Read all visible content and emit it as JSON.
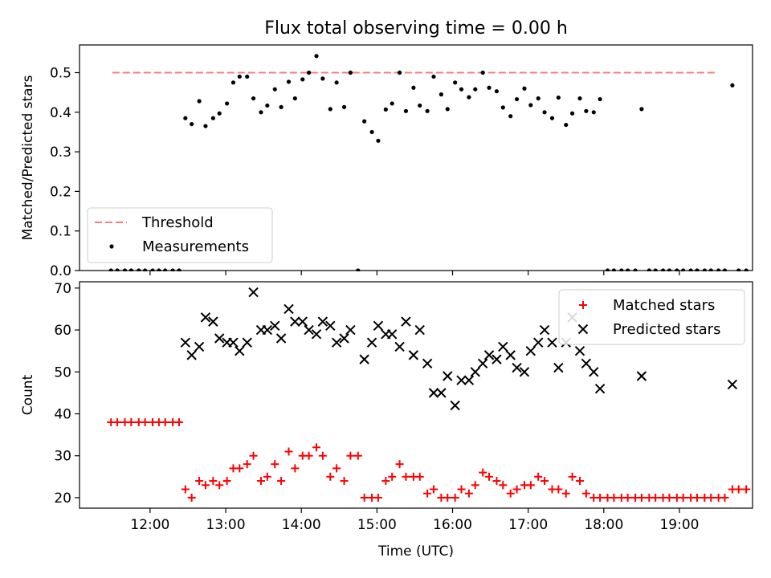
{
  "title": "Flux total observing time = 0.00 h",
  "chart_data": [
    {
      "type": "scatter",
      "panel": "top",
      "ylabel": "Matched/Predicted stars",
      "xlabel": "",
      "xlim": [
        "11:04",
        "19:58"
      ],
      "ylim": [
        0.0,
        0.57
      ],
      "yticks": [
        0.0,
        0.1,
        0.2,
        0.3,
        0.4,
        0.5
      ],
      "ytick_labels": [
        "0.0",
        "0.1",
        "0.2",
        "0.3",
        "0.4",
        "0.5"
      ],
      "legend": {
        "placement": "lower-left",
        "entries": [
          "Threshold",
          "Measurements"
        ]
      },
      "threshold": {
        "name": "Threshold",
        "value": 0.5,
        "x_range": [
          "11:30",
          "19:30"
        ],
        "color": "#f08080"
      },
      "series": [
        {
          "name": "Measurements",
          "color": "#000000",
          "points": [
            [
              "11:29",
              0
            ],
            [
              "11:34",
              0
            ],
            [
              "11:40",
              0
            ],
            [
              "11:45",
              0
            ],
            [
              "11:51",
              0
            ],
            [
              "11:56",
              0
            ],
            [
              "12:02",
              0
            ],
            [
              "12:07",
              0
            ],
            [
              "12:12",
              0
            ],
            [
              "12:18",
              0
            ],
            [
              "12:23",
              0
            ],
            [
              "12:28",
              0.385
            ],
            [
              "12:33",
              0.37
            ],
            [
              "12:39",
              0.428
            ],
            [
              "12:44",
              0.365
            ],
            [
              "12:50",
              0.385
            ],
            [
              "12:55",
              0.397
            ],
            [
              "13:01",
              0.422
            ],
            [
              "13:06",
              0.475
            ],
            [
              "13:11",
              0.49
            ],
            [
              "13:17",
              0.49
            ],
            [
              "13:22",
              0.435
            ],
            [
              "13:28",
              0.4
            ],
            [
              "13:33",
              0.417
            ],
            [
              "13:39",
              0.458
            ],
            [
              "13:44",
              0.413
            ],
            [
              "13:50",
              0.477
            ],
            [
              "13:55",
              0.435
            ],
            [
              "14:01",
              0.483
            ],
            [
              "14:06",
              0.5
            ],
            [
              "14:12",
              0.542
            ],
            [
              "14:17",
              0.485
            ],
            [
              "14:23",
              0.408
            ],
            [
              "14:28",
              0.475
            ],
            [
              "14:34",
              0.413
            ],
            [
              "14:39",
              0.5
            ],
            [
              "14:45",
              0
            ],
            [
              "14:50",
              0.377
            ],
            [
              "14:56",
              0.35
            ],
            [
              "15:01",
              0.328
            ],
            [
              "15:07",
              0.407
            ],
            [
              "15:12",
              0.422
            ],
            [
              "15:18",
              0.5
            ],
            [
              "15:23",
              0.403
            ],
            [
              "15:29",
              0.462
            ],
            [
              "15:34",
              0.417
            ],
            [
              "15:40",
              0.403
            ],
            [
              "15:45",
              0.49
            ],
            [
              "15:51",
              0.445
            ],
            [
              "15:56",
              0.408
            ],
            [
              "16:02",
              0.475
            ],
            [
              "16:07",
              0.458
            ],
            [
              "16:13",
              0.438
            ],
            [
              "16:18",
              0.458
            ],
            [
              "16:24",
              0.5
            ],
            [
              "16:29",
              0.462
            ],
            [
              "16:35",
              0.453
            ],
            [
              "16:40",
              0.412
            ],
            [
              "16:46",
              0.39
            ],
            [
              "16:51",
              0.433
            ],
            [
              "16:57",
              0.46
            ],
            [
              "17:02",
              0.418
            ],
            [
              "17:08",
              0.435
            ],
            [
              "17:13",
              0.4
            ],
            [
              "17:19",
              0.385
            ],
            [
              "17:24",
              0.437
            ],
            [
              "17:30",
              0.368
            ],
            [
              "17:35",
              0.397
            ],
            [
              "17:41",
              0.435
            ],
            [
              "17:46",
              0.403
            ],
            [
              "17:52",
              0.4
            ],
            [
              "17:57",
              0.433
            ],
            [
              "18:03",
              0
            ],
            [
              "18:08",
              0
            ],
            [
              "18:14",
              0
            ],
            [
              "18:19",
              0
            ],
            [
              "18:25",
              0
            ],
            [
              "18:30",
              0.408
            ],
            [
              "18:36",
              0
            ],
            [
              "18:41",
              0
            ],
            [
              "18:47",
              0
            ],
            [
              "18:52",
              0
            ],
            [
              "18:58",
              0
            ],
            [
              "19:03",
              0
            ],
            [
              "19:09",
              0
            ],
            [
              "19:14",
              0
            ],
            [
              "19:20",
              0
            ],
            [
              "19:25",
              0
            ],
            [
              "19:31",
              0
            ],
            [
              "19:36",
              0
            ],
            [
              "19:42",
              0.468
            ],
            [
              "19:47",
              0
            ],
            [
              "19:53",
              0
            ]
          ]
        }
      ]
    },
    {
      "type": "scatter",
      "panel": "bottom",
      "ylabel": "Count",
      "xlabel": "Time (UTC)",
      "xlim": [
        "11:04",
        "19:58"
      ],
      "ylim": [
        17.5,
        71.5
      ],
      "yticks": [
        20,
        30,
        40,
        50,
        60,
        70
      ],
      "ytick_labels": [
        "20",
        "30",
        "40",
        "50",
        "60",
        "70"
      ],
      "xticks": [
        "12:00",
        "13:00",
        "14:00",
        "15:00",
        "16:00",
        "17:00",
        "18:00",
        "19:00"
      ],
      "legend": {
        "placement": "top-right",
        "entries": [
          "Matched stars",
          "Predicted stars"
        ]
      },
      "series": [
        {
          "name": "Matched stars",
          "marker": "plus",
          "color": "#ff0000",
          "points": [
            [
              "11:29",
              38
            ],
            [
              "11:34",
              38
            ],
            [
              "11:40",
              38
            ],
            [
              "11:45",
              38
            ],
            [
              "11:51",
              38
            ],
            [
              "11:56",
              38
            ],
            [
              "12:02",
              38
            ],
            [
              "12:07",
              38
            ],
            [
              "12:12",
              38
            ],
            [
              "12:18",
              38
            ],
            [
              "12:23",
              38
            ],
            [
              "12:28",
              22
            ],
            [
              "12:33",
              20
            ],
            [
              "12:39",
              24
            ],
            [
              "12:44",
              23
            ],
            [
              "12:50",
              24
            ],
            [
              "12:55",
              23
            ],
            [
              "13:01",
              24
            ],
            [
              "13:06",
              27
            ],
            [
              "13:11",
              27
            ],
            [
              "13:17",
              28
            ],
            [
              "13:22",
              30
            ],
            [
              "13:28",
              24
            ],
            [
              "13:33",
              25
            ],
            [
              "13:39",
              28
            ],
            [
              "13:44",
              24
            ],
            [
              "13:50",
              31
            ],
            [
              "13:55",
              27
            ],
            [
              "14:01",
              30
            ],
            [
              "14:06",
              30
            ],
            [
              "14:12",
              32
            ],
            [
              "14:17",
              30
            ],
            [
              "14:23",
              25
            ],
            [
              "14:28",
              27
            ],
            [
              "14:34",
              24
            ],
            [
              "14:39",
              30
            ],
            [
              "14:45",
              30
            ],
            [
              "14:50",
              20
            ],
            [
              "14:56",
              20
            ],
            [
              "15:01",
              20
            ],
            [
              "15:07",
              24
            ],
            [
              "15:12",
              25
            ],
            [
              "15:18",
              28
            ],
            [
              "15:23",
              25
            ],
            [
              "15:29",
              25
            ],
            [
              "15:34",
              25
            ],
            [
              "15:40",
              21
            ],
            [
              "15:45",
              22
            ],
            [
              "15:51",
              20
            ],
            [
              "15:56",
              20
            ],
            [
              "16:02",
              20
            ],
            [
              "16:07",
              22
            ],
            [
              "16:13",
              21
            ],
            [
              "16:18",
              23
            ],
            [
              "16:24",
              26
            ],
            [
              "16:29",
              25
            ],
            [
              "16:35",
              24
            ],
            [
              "16:40",
              23
            ],
            [
              "16:46",
              21
            ],
            [
              "16:51",
              22
            ],
            [
              "16:57",
              23
            ],
            [
              "17:02",
              23
            ],
            [
              "17:08",
              25
            ],
            [
              "17:13",
              24
            ],
            [
              "17:19",
              22
            ],
            [
              "17:24",
              22
            ],
            [
              "17:30",
              21
            ],
            [
              "17:35",
              25
            ],
            [
              "17:41",
              24
            ],
            [
              "17:46",
              21
            ],
            [
              "17:52",
              20
            ],
            [
              "17:57",
              20
            ],
            [
              "18:03",
              20
            ],
            [
              "18:08",
              20
            ],
            [
              "18:14",
              20
            ],
            [
              "18:19",
              20
            ],
            [
              "18:25",
              20
            ],
            [
              "18:30",
              20
            ],
            [
              "18:36",
              20
            ],
            [
              "18:41",
              20
            ],
            [
              "18:47",
              20
            ],
            [
              "18:52",
              20
            ],
            [
              "18:58",
              20
            ],
            [
              "19:03",
              20
            ],
            [
              "19:09",
              20
            ],
            [
              "19:14",
              20
            ],
            [
              "19:20",
              20
            ],
            [
              "19:25",
              20
            ],
            [
              "19:31",
              20
            ],
            [
              "19:36",
              20
            ],
            [
              "19:42",
              22
            ],
            [
              "19:47",
              22
            ],
            [
              "19:53",
              22
            ]
          ]
        },
        {
          "name": "Predicted stars",
          "marker": "x",
          "color": "#000000",
          "points": [
            [
              "12:28",
              57
            ],
            [
              "12:33",
              54
            ],
            [
              "12:39",
              56
            ],
            [
              "12:44",
              63
            ],
            [
              "12:50",
              62
            ],
            [
              "12:55",
              58
            ],
            [
              "13:01",
              57
            ],
            [
              "13:06",
              57
            ],
            [
              "13:11",
              55
            ],
            [
              "13:17",
              57
            ],
            [
              "13:22",
              69
            ],
            [
              "13:28",
              60
            ],
            [
              "13:33",
              60
            ],
            [
              "13:39",
              61
            ],
            [
              "13:44",
              58
            ],
            [
              "13:50",
              65
            ],
            [
              "13:55",
              62
            ],
            [
              "14:01",
              62
            ],
            [
              "14:06",
              60
            ],
            [
              "14:12",
              59
            ],
            [
              "14:17",
              62
            ],
            [
              "14:23",
              61
            ],
            [
              "14:28",
              57
            ],
            [
              "14:34",
              58
            ],
            [
              "14:39",
              60
            ],
            [
              "14:50",
              53
            ],
            [
              "14:56",
              57
            ],
            [
              "15:01",
              61
            ],
            [
              "15:07",
              59
            ],
            [
              "15:12",
              59
            ],
            [
              "15:18",
              56
            ],
            [
              "15:23",
              62
            ],
            [
              "15:29",
              54
            ],
            [
              "15:34",
              60
            ],
            [
              "15:40",
              52
            ],
            [
              "15:45",
              45
            ],
            [
              "15:51",
              45
            ],
            [
              "15:56",
              49
            ],
            [
              "16:02",
              42
            ],
            [
              "16:07",
              48
            ],
            [
              "16:13",
              48
            ],
            [
              "16:18",
              50
            ],
            [
              "16:24",
              52
            ],
            [
              "16:29",
              54
            ],
            [
              "16:35",
              53
            ],
            [
              "16:40",
              56
            ],
            [
              "16:46",
              54
            ],
            [
              "16:51",
              51
            ],
            [
              "16:57",
              50
            ],
            [
              "17:02",
              55
            ],
            [
              "17:08",
              57
            ],
            [
              "17:13",
              60
            ],
            [
              "17:19",
              57
            ],
            [
              "17:24",
              51
            ],
            [
              "17:30",
              57
            ],
            [
              "17:35",
              63
            ],
            [
              "17:41",
              55
            ],
            [
              "17:46",
              52
            ],
            [
              "17:52",
              50
            ],
            [
              "17:57",
              46
            ],
            [
              "18:30",
              49
            ],
            [
              "19:42",
              47
            ]
          ]
        }
      ]
    }
  ]
}
